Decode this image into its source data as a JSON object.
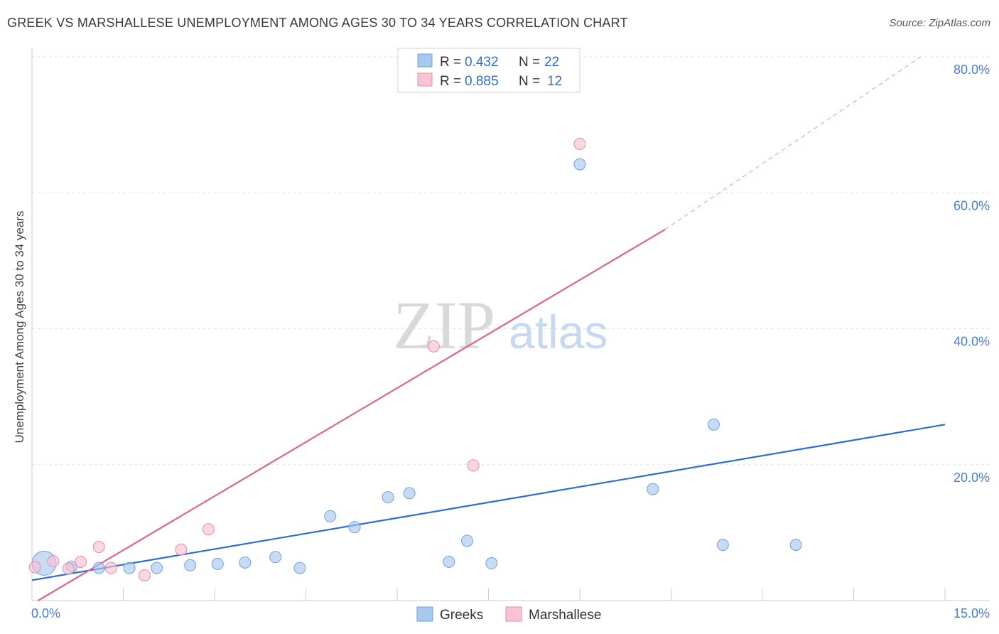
{
  "chart_data": {
    "type": "scatter",
    "title": "GREEK VS MARSHALLESE UNEMPLOYMENT AMONG AGES 30 TO 34 YEARS CORRELATION CHART",
    "source": "Source: ZipAtlas.com",
    "xlabel": "",
    "ylabel": "Unemployment Among Ages 30 to 34 years",
    "xlim": [
      0,
      15
    ],
    "ylim": [
      0,
      80
    ],
    "x_tick_labels": [
      "0.0%",
      "15.0%"
    ],
    "y_ticks": [
      {
        "value": 20,
        "label": "20.0%"
      },
      {
        "value": 40,
        "label": "40.0%"
      },
      {
        "value": 60,
        "label": "60.0%"
      },
      {
        "value": 80,
        "label": "80.0%"
      }
    ],
    "watermark": {
      "zip": "ZIP",
      "atlas": "atlas"
    },
    "legend": {
      "entries": [
        {
          "r_label": "R = ",
          "r_value": "0.432",
          "n_label": "N = ",
          "n_value": "22"
        },
        {
          "r_label": "R = ",
          "r_value": "0.885",
          "n_label": "N = ",
          "n_value": "12"
        }
      ]
    },
    "colors": {
      "greeks_fill": "#a9c8f0",
      "greeks_stroke": "#6f9fe0",
      "greeks_line": "#2a6fcf",
      "marsh_fill": "#f8c3d3",
      "marsh_stroke": "#e88aa8",
      "marsh_line": "#e0658c",
      "value_text": "#2a6fcf"
    },
    "series": [
      {
        "name": "Greeks",
        "points": [
          {
            "x": 0.2,
            "y": 5.5,
            "size": "large"
          },
          {
            "x": 0.65,
            "y": 5.0
          },
          {
            "x": 1.1,
            "y": 4.8
          },
          {
            "x": 1.6,
            "y": 4.8
          },
          {
            "x": 2.05,
            "y": 4.8
          },
          {
            "x": 2.6,
            "y": 5.2
          },
          {
            "x": 3.05,
            "y": 5.4
          },
          {
            "x": 3.5,
            "y": 5.6
          },
          {
            "x": 4.0,
            "y": 6.4
          },
          {
            "x": 4.4,
            "y": 4.8
          },
          {
            "x": 4.9,
            "y": 12.4
          },
          {
            "x": 5.3,
            "y": 10.8
          },
          {
            "x": 5.85,
            "y": 15.2
          },
          {
            "x": 6.2,
            "y": 15.8
          },
          {
            "x": 6.85,
            "y": 5.7
          },
          {
            "x": 7.15,
            "y": 8.8
          },
          {
            "x": 7.55,
            "y": 5.5
          },
          {
            "x": 9.0,
            "y": 64.2
          },
          {
            "x": 10.2,
            "y": 16.4
          },
          {
            "x": 11.2,
            "y": 25.9
          },
          {
            "x": 11.35,
            "y": 8.2
          },
          {
            "x": 12.55,
            "y": 8.2
          }
        ],
        "trendline": {
          "x": [
            0,
            15
          ],
          "y": [
            3.0,
            25.9
          ]
        }
      },
      {
        "name": "Marshallese",
        "points": [
          {
            "x": 0.05,
            "y": 4.9
          },
          {
            "x": 0.35,
            "y": 5.8
          },
          {
            "x": 0.6,
            "y": 4.7
          },
          {
            "x": 0.8,
            "y": 5.7
          },
          {
            "x": 1.1,
            "y": 7.9
          },
          {
            "x": 1.3,
            "y": 4.8
          },
          {
            "x": 1.85,
            "y": 3.7
          },
          {
            "x": 2.45,
            "y": 7.5
          },
          {
            "x": 2.9,
            "y": 10.5
          },
          {
            "x": 6.6,
            "y": 37.4
          },
          {
            "x": 7.25,
            "y": 19.9
          },
          {
            "x": 9.0,
            "y": 67.2
          }
        ],
        "trendline": {
          "x": [
            0.1,
            10.4
          ],
          "y": [
            0,
            54.6
          ],
          "dashed_extension": {
            "x": [
              10.4,
              14.6
            ],
            "y": [
              54.6,
              80.0
            ]
          }
        }
      }
    ],
    "bottom_legend": [
      "Greeks",
      "Marshallese"
    ]
  }
}
